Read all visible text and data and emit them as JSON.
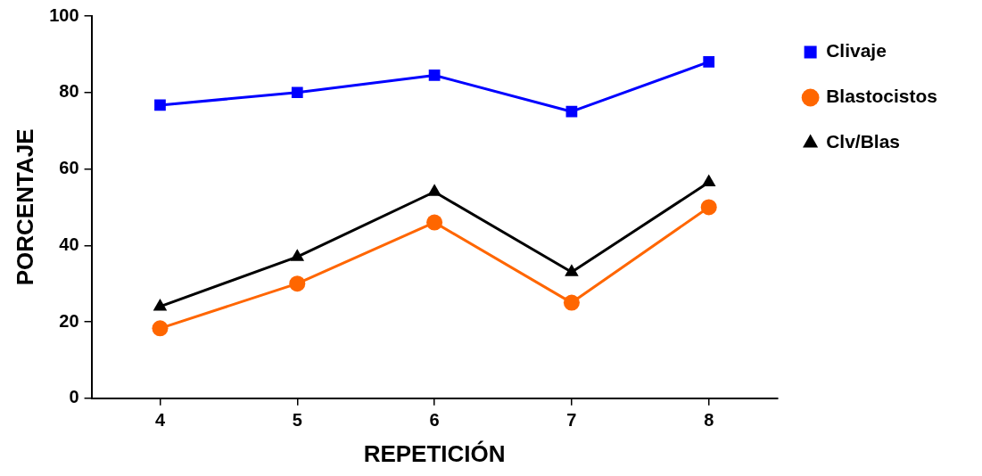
{
  "chart_data": {
    "type": "line",
    "xlabel": "REPETICIÓN",
    "ylabel": "PORCENTAJE",
    "x": [
      4,
      5,
      6,
      7,
      8
    ],
    "xlim": [
      3.5,
      8.5
    ],
    "xticks": [
      4,
      5,
      6,
      7,
      8
    ],
    "ylim": [
      0,
      100
    ],
    "yticks": [
      0,
      20,
      40,
      60,
      80,
      100
    ],
    "grid": false,
    "legend": "top right",
    "line_style": "solid",
    "series": [
      {
        "name": "Clivaje",
        "color": "#0000ff",
        "marker": "square",
        "values": [
          76.7,
          80,
          84.5,
          75,
          88
        ]
      },
      {
        "name": "Blastocistos",
        "color": "#ff6600",
        "marker": "circle",
        "values": [
          18.3,
          30,
          46,
          25,
          50
        ]
      },
      {
        "name": "Clv/Blas",
        "color": "#000000",
        "marker": "triangle",
        "values": [
          24,
          37,
          54,
          33,
          56.5
        ]
      }
    ]
  }
}
